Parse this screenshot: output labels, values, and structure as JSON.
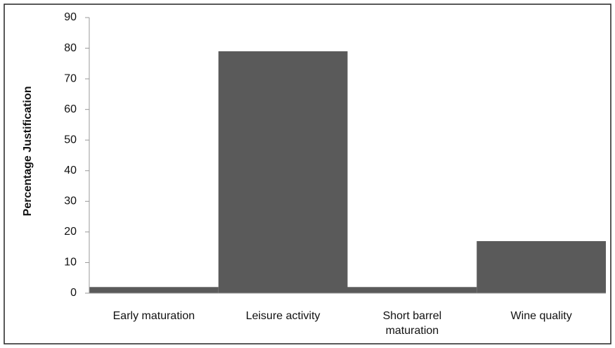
{
  "chart_data": {
    "type": "bar",
    "y_label": "Percentage Justification",
    "categories": [
      "Early maturation",
      "Leisure activity",
      "Short barrel maturation",
      "Wine quality"
    ],
    "values": [
      2,
      79,
      2,
      17
    ],
    "color": "#5a5a5a",
    "ylim": [
      0,
      90
    ],
    "yticks": [
      0,
      10,
      20,
      30,
      40,
      50,
      60,
      70,
      80,
      90
    ],
    "grid": false
  }
}
